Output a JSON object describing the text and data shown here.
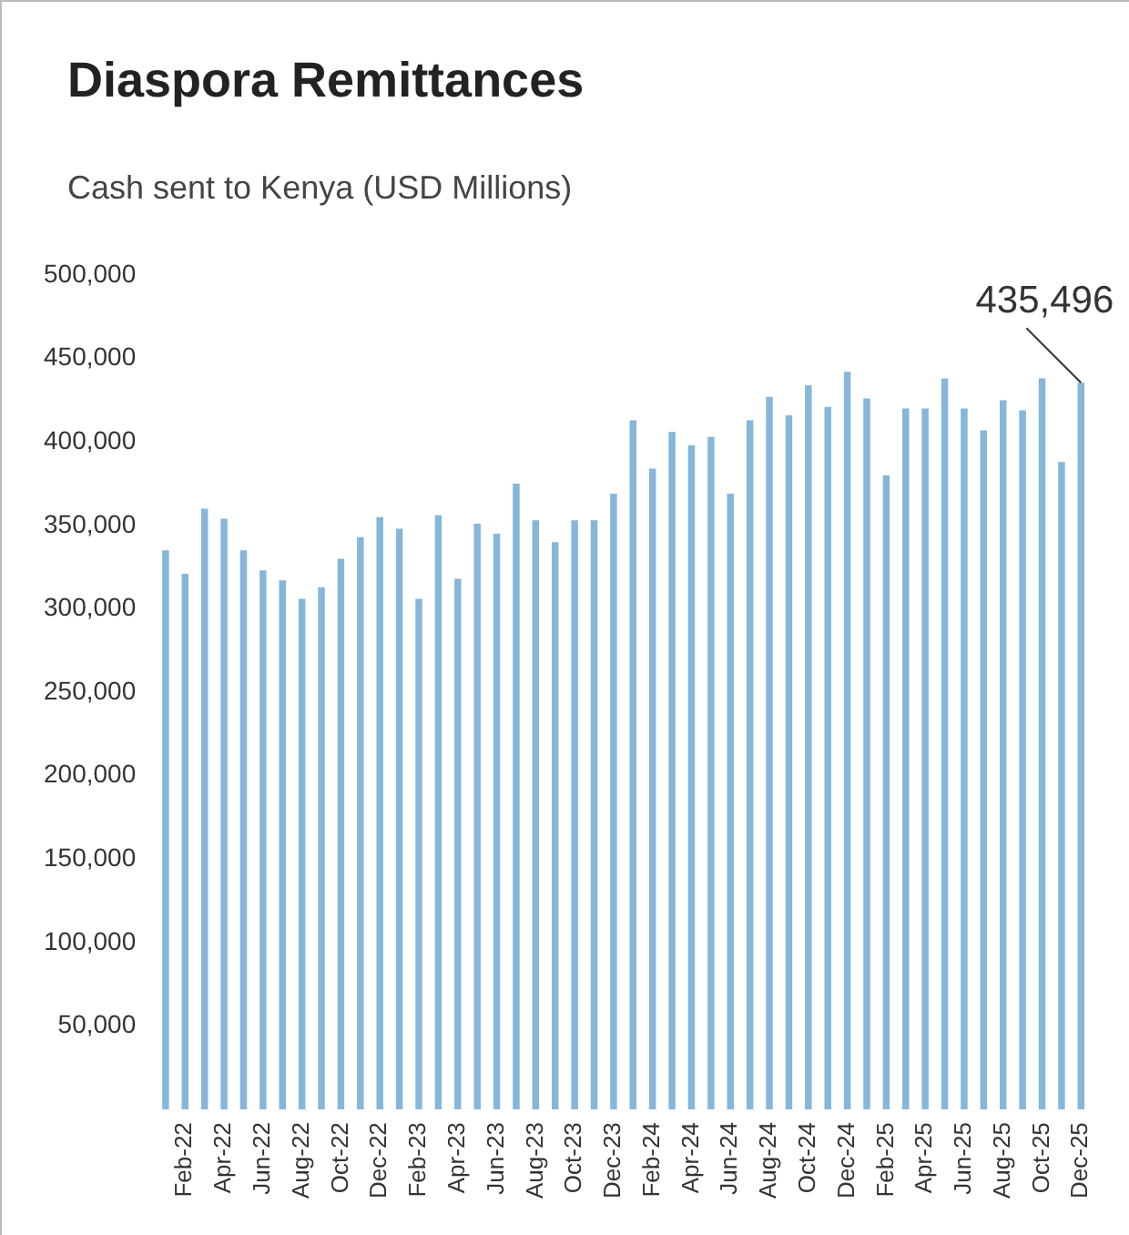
{
  "chart_data": {
    "type": "bar",
    "title": "Diaspora Remittances",
    "subtitle": "Cash sent to Kenya (USD Millions)",
    "categories": [
      null,
      "Feb-22",
      null,
      "Apr-22",
      null,
      "Jun-22",
      null,
      "Aug-22",
      null,
      "Oct-22",
      null,
      "Dec-22",
      null,
      "Feb-23",
      null,
      "Apr-23",
      null,
      "Jun-23",
      null,
      "Aug-23",
      null,
      "Oct-23",
      null,
      "Dec-23",
      null,
      "Feb-24",
      null,
      "Apr-24",
      null,
      "Jun-24",
      null,
      "Aug-24",
      null,
      "Oct-24",
      null,
      "Dec-24",
      null,
      "Feb-25",
      null,
      "Apr-25",
      null,
      "Jun-25",
      null,
      "Aug-25",
      null,
      "Oct-25",
      null,
      "Dec-25"
    ],
    "values": [
      335000,
      321000,
      360000,
      354000,
      335000,
      323000,
      317000,
      306000,
      313000,
      330000,
      343000,
      355000,
      348000,
      306000,
      356000,
      318000,
      351000,
      345000,
      375000,
      353000,
      340000,
      353000,
      353000,
      369000,
      413000,
      384000,
      406000,
      398000,
      403000,
      369000,
      413000,
      427000,
      416000,
      434000,
      421000,
      442000,
      426000,
      380000,
      420000,
      420000,
      438000,
      420000,
      407000,
      425000,
      419000,
      438000,
      388000,
      435496
    ],
    "color": "#86b6d9",
    "ylim": [
      0,
      500000
    ],
    "yticks": [
      {
        "value": 50000,
        "label": "50,000"
      },
      {
        "value": 100000,
        "label": "100,000"
      },
      {
        "value": 150000,
        "label": "150,000"
      },
      {
        "value": 200000,
        "label": "200,000"
      },
      {
        "value": 250000,
        "label": "250,000"
      },
      {
        "value": 300000,
        "label": "300,000"
      },
      {
        "value": 350000,
        "label": "350,000"
      },
      {
        "value": 400000,
        "label": "400,000"
      },
      {
        "value": 450000,
        "label": "450,000"
      },
      {
        "value": 500000,
        "label": "500,000"
      }
    ],
    "grid": false,
    "annotations": [
      {
        "text": "435,496",
        "x": "Dec-25",
        "y": 435496
      }
    ]
  }
}
